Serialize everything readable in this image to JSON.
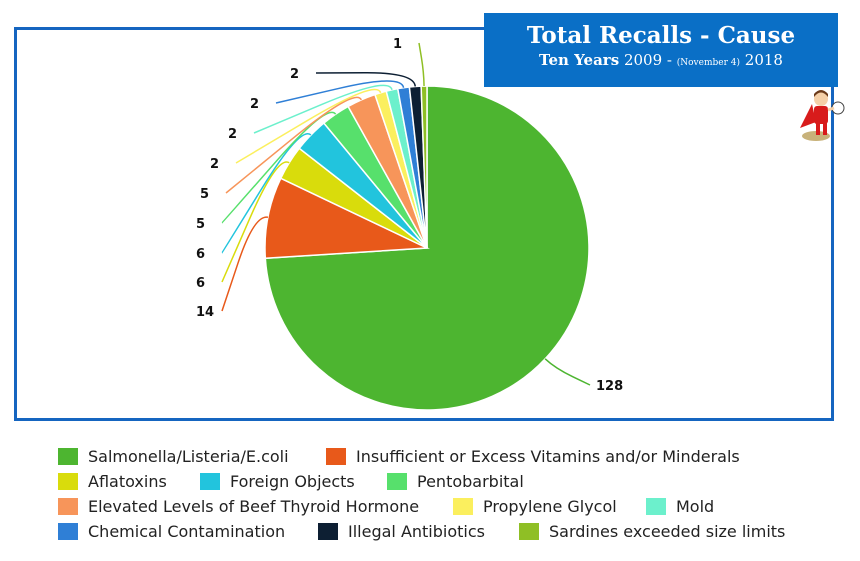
{
  "title": {
    "main": "Total Recalls - Cause",
    "sub_bold": "Ten Years",
    "sub_start": "2009 -",
    "sub_note": "(November 4)",
    "sub_end": "2018"
  },
  "chart_data": {
    "type": "pie",
    "title": "Total Recalls - Cause",
    "subtitle": "Ten Years 2009 - (November 4) 2018",
    "legend_position": "bottom",
    "slices": [
      {
        "label": "Salmonella/Listeria/E.coli",
        "value": 128,
        "color": "#4db530"
      },
      {
        "label": "Insufficient or Excess Vitamins and/or Minderals",
        "value": 14,
        "color": "#e8591a"
      },
      {
        "label": "Aflatoxins",
        "value": 6,
        "color": "#d9dc0c"
      },
      {
        "label": "Foreign Objects",
        "value": 6,
        "color": "#22c4dd"
      },
      {
        "label": "Pentobarbital",
        "value": 5,
        "color": "#57e06c"
      },
      {
        "label": "Elevated Levels of Beef Thyroid Hormone",
        "value": 5,
        "color": "#f7955a"
      },
      {
        "label": "Propylene Glycol",
        "value": 2,
        "color": "#fbef5e"
      },
      {
        "label": "Mold",
        "value": 2,
        "color": "#6cf0cc"
      },
      {
        "label": "Chemical Contamination",
        "value": 2,
        "color": "#2f7fd6"
      },
      {
        "label": "Illegal Antibiotics",
        "value": 2,
        "color": "#0d1f33"
      },
      {
        "label": "Sardines exceeded size limits",
        "value": 1,
        "color": "#8fbf25"
      }
    ]
  }
}
